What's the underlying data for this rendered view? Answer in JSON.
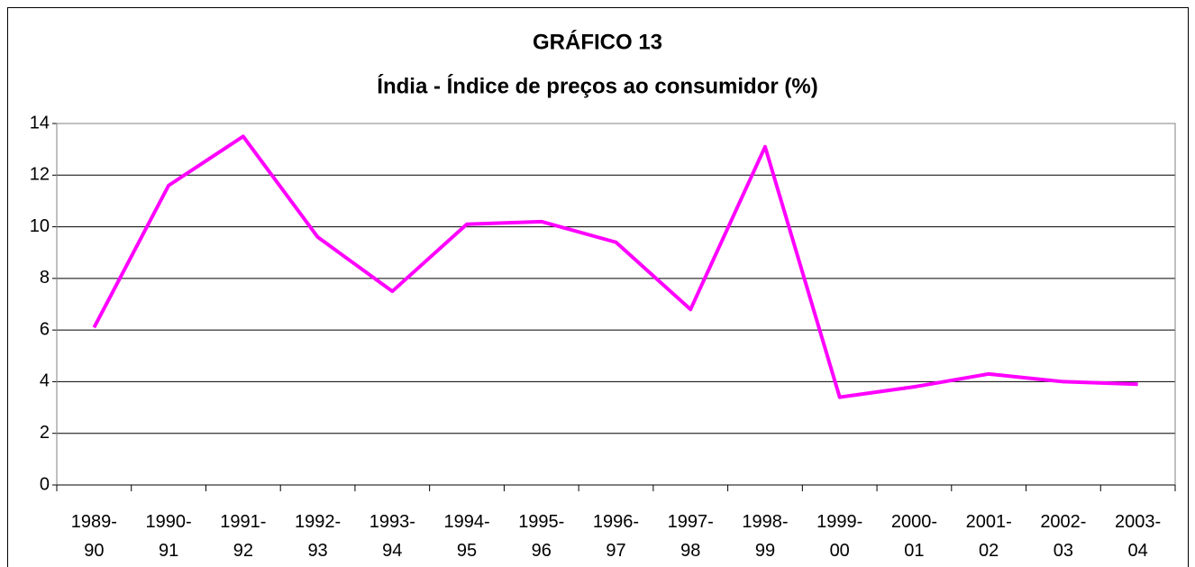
{
  "chart_data": {
    "type": "line",
    "title": "GRÁFICO 13",
    "subtitle": "Índia - Índice de preços ao consumidor (%)",
    "categories": [
      "1989-90",
      "1990-91",
      "1991-92",
      "1992-93",
      "1993-94",
      "1994-95",
      "1995-96",
      "1996-97",
      "1997-98",
      "1998-99",
      "1999-00",
      "2000-01",
      "2001-02",
      "2002-03",
      "2003-04"
    ],
    "series": [
      {
        "color": "#ff00ff",
        "values": [
          6.1,
          11.6,
          13.5,
          9.6,
          7.5,
          10.1,
          10.2,
          9.4,
          6.8,
          13.1,
          3.4,
          3.8,
          4.3,
          4.0,
          3.9
        ]
      }
    ],
    "ylim": [
      0,
      14
    ],
    "yticks": [
      0,
      2,
      4,
      6,
      8,
      10,
      12,
      14
    ],
    "grid": true
  }
}
